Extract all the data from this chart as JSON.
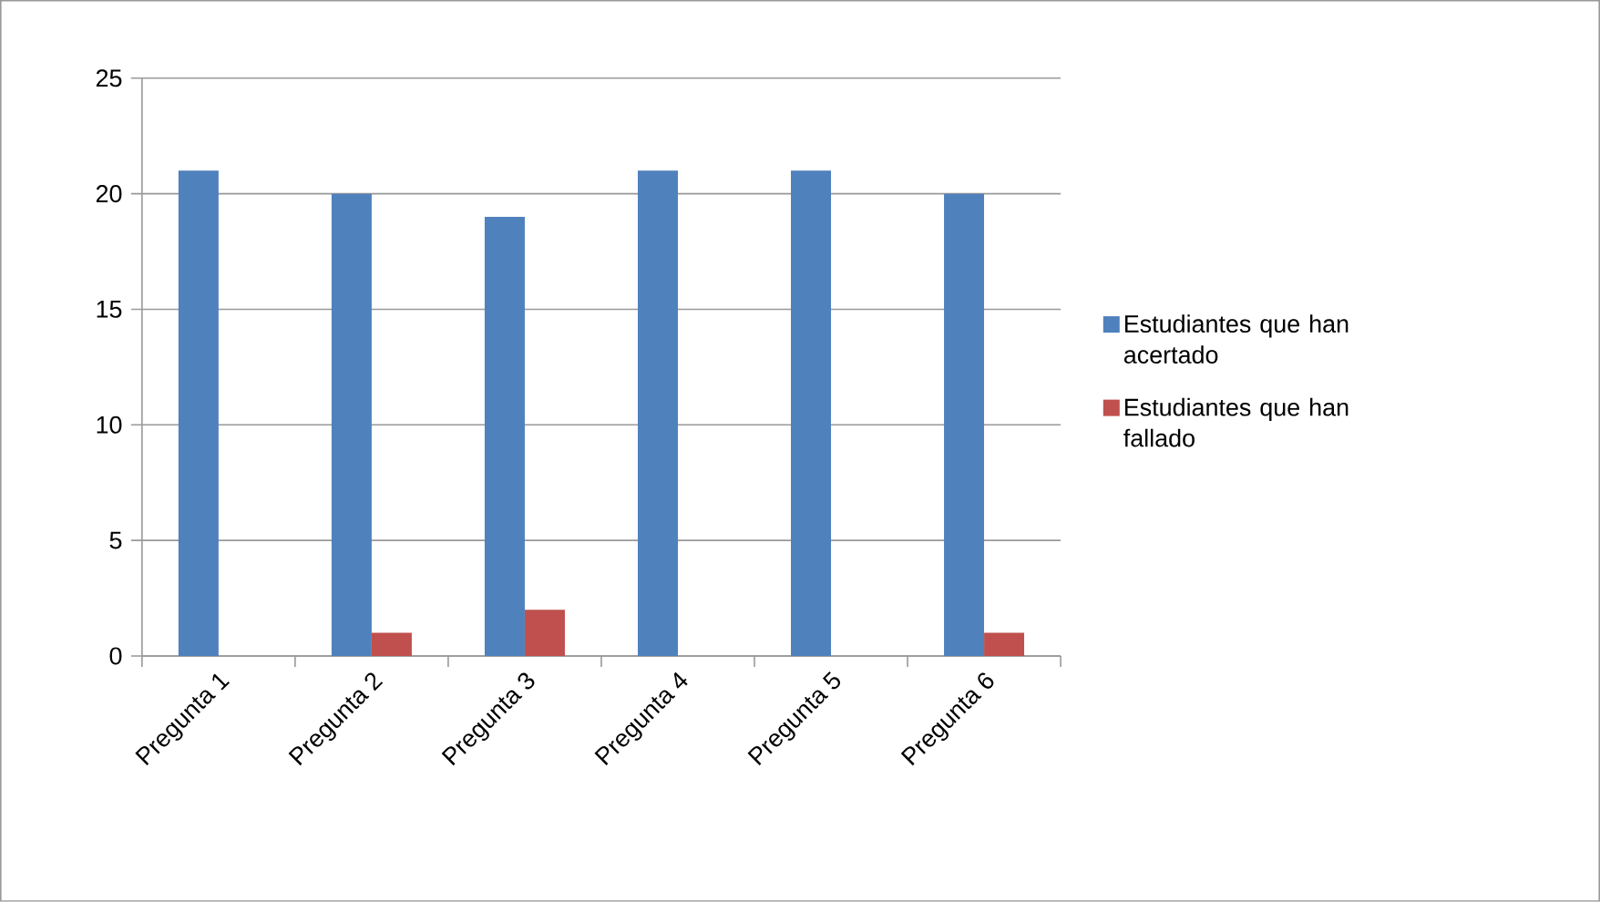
{
  "chart_data": {
    "type": "bar",
    "categories": [
      "Pregunta 1",
      "Pregunta 2",
      "Pregunta 3",
      "Pregunta 4",
      "Pregunta 5",
      "Pregunta 6"
    ],
    "series": [
      {
        "name": "Estudiantes que han acertado",
        "color": "#4f81bd",
        "values": [
          21,
          20,
          19,
          21,
          21,
          20
        ]
      },
      {
        "name": "Estudiantes que han fallado",
        "color": "#c0504d",
        "values": [
          0,
          1,
          2,
          0,
          0,
          1
        ]
      }
    ],
    "ylim": [
      0,
      25
    ],
    "yticks": [
      0,
      5,
      10,
      15,
      20,
      25
    ],
    "grid": "y",
    "legend": "right"
  }
}
